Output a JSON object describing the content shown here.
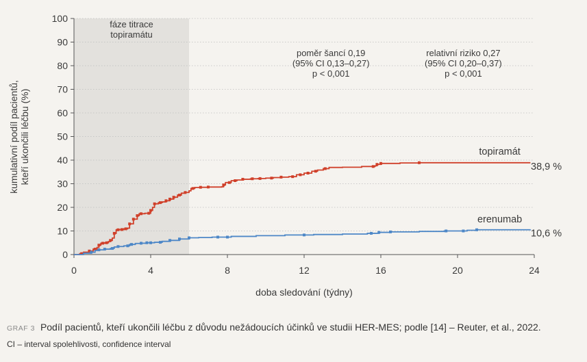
{
  "chart_data": {
    "type": "line",
    "xlabel": "doba sledování (týdny)",
    "ylabel_lines": [
      "kumulativní podíl pacientů,",
      "kteří ukončili léčbu (%)"
    ],
    "xlim": [
      0,
      24
    ],
    "ylim": [
      0,
      100
    ],
    "xticks": [
      0,
      4,
      8,
      12,
      16,
      20,
      24
    ],
    "yticks": [
      0,
      10,
      20,
      30,
      40,
      50,
      60,
      70,
      80,
      90,
      100
    ],
    "shaded_region": {
      "x0": 0,
      "x1": 6,
      "label_lines": [
        "fáze titrace",
        "topiramátu"
      ]
    },
    "series": [
      {
        "name": "topiramát",
        "color": "#d0402a",
        "end_label": "38,9 %",
        "points": [
          [
            0,
            0
          ],
          [
            0.3,
            0.4
          ],
          [
            0.5,
            1
          ],
          [
            0.8,
            1.5
          ],
          [
            1.0,
            2.3
          ],
          [
            1.2,
            3
          ],
          [
            1.3,
            4
          ],
          [
            1.4,
            4.8
          ],
          [
            1.6,
            5
          ],
          [
            1.8,
            5.5
          ],
          [
            1.9,
            6
          ],
          [
            2.0,
            7
          ],
          [
            2.1,
            9
          ],
          [
            2.2,
            10.5
          ],
          [
            2.4,
            10.6
          ],
          [
            2.6,
            10.9
          ],
          [
            2.8,
            11.2
          ],
          [
            2.9,
            13
          ],
          [
            3.1,
            15
          ],
          [
            3.3,
            16.5
          ],
          [
            3.4,
            17.3
          ],
          [
            3.7,
            17.5
          ],
          [
            4.0,
            18.7
          ],
          [
            4.1,
            20
          ],
          [
            4.2,
            21.5
          ],
          [
            4.4,
            22
          ],
          [
            4.6,
            22.3
          ],
          [
            4.8,
            22.8
          ],
          [
            5.0,
            23.5
          ],
          [
            5.2,
            24.3
          ],
          [
            5.4,
            25.2
          ],
          [
            5.6,
            26
          ],
          [
            5.8,
            26.3
          ],
          [
            6.0,
            27
          ],
          [
            6.1,
            28
          ],
          [
            6.3,
            28.4
          ],
          [
            6.6,
            28.5
          ],
          [
            7.0,
            28.6
          ],
          [
            7.7,
            28.7
          ],
          [
            7.8,
            29.5
          ],
          [
            7.9,
            30.5
          ],
          [
            8.2,
            31.3
          ],
          [
            8.5,
            31.6
          ],
          [
            8.8,
            31.9
          ],
          [
            9.2,
            32.1
          ],
          [
            9.6,
            32.2
          ],
          [
            10.0,
            32.4
          ],
          [
            10.4,
            32.6
          ],
          [
            10.8,
            32.8
          ],
          [
            11.2,
            33
          ],
          [
            11.6,
            33.8
          ],
          [
            12.0,
            34.5
          ],
          [
            12.4,
            35.3
          ],
          [
            12.7,
            35.8
          ],
          [
            13.0,
            36.4
          ],
          [
            13.3,
            36.9
          ],
          [
            14.0,
            37
          ],
          [
            15.0,
            37.3
          ],
          [
            15.7,
            37.6
          ],
          [
            15.8,
            38.2
          ],
          [
            16.0,
            38.6
          ],
          [
            17.0,
            38.8
          ],
          [
            18.0,
            38.9
          ],
          [
            20.0,
            38.9
          ],
          [
            23.8,
            38.9
          ]
        ],
        "markers_x": [
          0.4,
          0.8,
          1.1,
          1.3,
          1.5,
          1.7,
          1.9,
          2.1,
          2.3,
          2.5,
          2.7,
          2.9,
          3.1,
          3.3,
          3.5,
          3.9,
          4.0,
          4.2,
          4.5,
          4.8,
          5.0,
          5.2,
          5.5,
          5.8,
          6.2,
          6.6,
          7.0,
          7.8,
          8.1,
          8.4,
          8.8,
          9.3,
          9.7,
          10.3,
          10.8,
          11.4,
          11.8,
          12.2,
          12.6,
          13.1,
          15.6,
          15.8,
          16.0,
          18.0
        ]
      },
      {
        "name": "erenumab",
        "color": "#4d87c7",
        "end_label": "10,6 %",
        "points": [
          [
            0,
            0
          ],
          [
            0.5,
            0.6
          ],
          [
            0.9,
            1
          ],
          [
            1.1,
            1.7
          ],
          [
            1.3,
            2
          ],
          [
            1.6,
            2.3
          ],
          [
            1.9,
            2.6
          ],
          [
            2.1,
            3.2
          ],
          [
            2.3,
            3.4
          ],
          [
            2.6,
            3.7
          ],
          [
            2.9,
            4.3
          ],
          [
            3.2,
            4.7
          ],
          [
            3.5,
            4.8
          ],
          [
            3.8,
            5
          ],
          [
            4.2,
            5.2
          ],
          [
            4.6,
            5.6
          ],
          [
            5.0,
            6
          ],
          [
            5.5,
            6.6
          ],
          [
            6.0,
            7.1
          ],
          [
            6.5,
            7.2
          ],
          [
            7.2,
            7.4
          ],
          [
            8.2,
            7.7
          ],
          [
            9.5,
            8
          ],
          [
            11.0,
            8.3
          ],
          [
            12.5,
            8.5
          ],
          [
            14.0,
            8.7
          ],
          [
            15.3,
            9
          ],
          [
            15.9,
            9.4
          ],
          [
            16.5,
            9.6
          ],
          [
            18.0,
            9.8
          ],
          [
            19.3,
            10
          ],
          [
            20.5,
            10.3
          ],
          [
            21.0,
            10.5
          ],
          [
            23.8,
            10.6
          ]
        ],
        "markers_x": [
          0.9,
          1.3,
          1.6,
          2.0,
          2.3,
          2.8,
          3.0,
          3.5,
          3.8,
          4.0,
          4.5,
          5.0,
          5.5,
          6.0,
          7.5,
          8.0,
          12.0,
          15.5,
          15.9,
          16.5,
          19.4,
          20.3,
          21.0
        ]
      }
    ],
    "annotations": [
      {
        "lines": [
          "poměr šancí 0,19",
          "(95% CI 0,13–0,27)",
          "p < 0,001"
        ]
      },
      {
        "lines": [
          "relativní riziko 0,27",
          "(95% CI 0,20–0,37)",
          "p < 0,001"
        ]
      }
    ]
  },
  "caption": {
    "label": "GRAF 3",
    "text": "Podíl pacientů, kteří ukončili léčbu z důvodu nežádoucích účinků ve studii HER-MES; podle [14] – Reuter, et al., 2022."
  },
  "note": "CI – interval spolehlivosti, confidence interval"
}
